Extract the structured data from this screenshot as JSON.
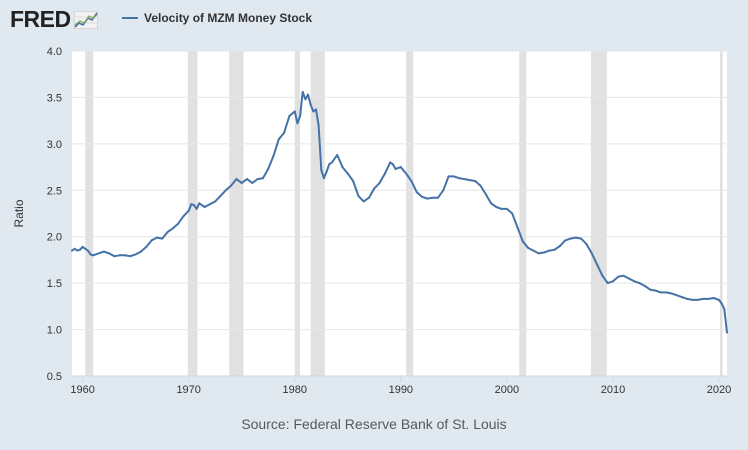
{
  "header": {
    "logo_text": "FRED",
    "logo_icon": "chart-line-icon"
  },
  "source": "Source: Federal Reserve Bank of St. Louis",
  "colors": {
    "background": "#e1e9f0",
    "plot_bg": "#ffffff",
    "series": "#4572a7",
    "recession": "#e1e1e1",
    "grid": "#e6e6e6",
    "text": "#333333"
  },
  "chart_data": {
    "type": "line",
    "title": "",
    "xlabel": "",
    "ylabel": "Ratio",
    "xlim": [
      1959.0,
      2020.75
    ],
    "ylim": [
      0.5,
      4.0
    ],
    "x_ticks": [
      1960,
      1970,
      1980,
      1990,
      2000,
      2010,
      2020
    ],
    "y_ticks": [
      0.5,
      1.0,
      1.5,
      2.0,
      2.5,
      3.0,
      3.5,
      4.0
    ],
    "y_tick_labels": [
      "0.5",
      "1.0",
      "1.5",
      "2.0",
      "2.5",
      "3.0",
      "3.5",
      "4.0"
    ],
    "grid": true,
    "legend_position": "top-left",
    "recessions": [
      [
        1960.25,
        1961.0
      ],
      [
        1969.92,
        1970.83
      ],
      [
        1973.83,
        1975.17
      ],
      [
        1980.0,
        1980.5
      ],
      [
        1981.5,
        1982.83
      ],
      [
        1990.5,
        1991.17
      ],
      [
        2001.17,
        2001.83
      ],
      [
        2007.92,
        2009.42
      ],
      [
        2020.08,
        2020.33
      ]
    ],
    "series": [
      {
        "name": "Velocity of MZM Money Stock",
        "x": [
          1959.0,
          1959.25,
          1959.5,
          1959.75,
          1960.0,
          1960.25,
          1960.5,
          1960.75,
          1961.0,
          1961.5,
          1962.0,
          1962.5,
          1963.0,
          1963.5,
          1964.0,
          1964.5,
          1965.0,
          1965.5,
          1966.0,
          1966.5,
          1967.0,
          1967.5,
          1968.0,
          1968.5,
          1969.0,
          1969.5,
          1970.0,
          1970.25,
          1970.5,
          1970.75,
          1971.0,
          1971.5,
          1972.0,
          1972.5,
          1973.0,
          1973.5,
          1974.0,
          1974.5,
          1975.0,
          1975.5,
          1976.0,
          1976.5,
          1977.0,
          1977.5,
          1978.0,
          1978.5,
          1979.0,
          1979.5,
          1980.0,
          1980.25,
          1980.5,
          1980.75,
          1981.0,
          1981.25,
          1981.5,
          1981.75,
          1982.0,
          1982.25,
          1982.5,
          1982.75,
          1983.0,
          1983.25,
          1983.5,
          1984.0,
          1984.5,
          1985.0,
          1985.5,
          1986.0,
          1986.5,
          1987.0,
          1987.5,
          1988.0,
          1988.5,
          1989.0,
          1989.25,
          1989.5,
          1990.0,
          1990.5,
          1991.0,
          1991.5,
          1992.0,
          1992.5,
          1993.0,
          1993.5,
          1994.0,
          1994.5,
          1995.0,
          1995.5,
          1996.0,
          1996.5,
          1997.0,
          1997.5,
          1998.0,
          1998.5,
          1999.0,
          1999.5,
          2000.0,
          2000.5,
          2001.0,
          2001.5,
          2002.0,
          2002.5,
          2003.0,
          2003.5,
          2004.0,
          2004.5,
          2005.0,
          2005.5,
          2006.0,
          2006.5,
          2007.0,
          2007.5,
          2008.0,
          2008.5,
          2009.0,
          2009.5,
          2010.0,
          2010.5,
          2011.0,
          2011.5,
          2012.0,
          2012.5,
          2013.0,
          2013.5,
          2014.0,
          2014.5,
          2015.0,
          2015.5,
          2016.0,
          2016.5,
          2017.0,
          2017.5,
          2018.0,
          2018.5,
          2019.0,
          2019.5,
          2020.0,
          2020.25,
          2020.5,
          2020.75
        ],
        "values": [
          1.85,
          1.87,
          1.85,
          1.86,
          1.89,
          1.87,
          1.85,
          1.81,
          1.8,
          1.82,
          1.84,
          1.82,
          1.79,
          1.8,
          1.8,
          1.79,
          1.81,
          1.84,
          1.89,
          1.96,
          1.99,
          1.98,
          2.05,
          2.09,
          2.14,
          2.22,
          2.28,
          2.35,
          2.34,
          2.3,
          2.36,
          2.32,
          2.35,
          2.38,
          2.44,
          2.5,
          2.55,
          2.62,
          2.58,
          2.62,
          2.58,
          2.62,
          2.63,
          2.73,
          2.87,
          3.05,
          3.12,
          3.3,
          3.35,
          3.22,
          3.3,
          3.56,
          3.48,
          3.53,
          3.42,
          3.35,
          3.37,
          3.2,
          2.72,
          2.63,
          2.7,
          2.78,
          2.8,
          2.88,
          2.75,
          2.68,
          2.6,
          2.44,
          2.38,
          2.42,
          2.52,
          2.58,
          2.68,
          2.8,
          2.78,
          2.73,
          2.75,
          2.68,
          2.6,
          2.48,
          2.43,
          2.41,
          2.42,
          2.42,
          2.5,
          2.65,
          2.65,
          2.63,
          2.62,
          2.61,
          2.6,
          2.55,
          2.46,
          2.36,
          2.32,
          2.3,
          2.3,
          2.25,
          2.1,
          1.95,
          1.88,
          1.85,
          1.82,
          1.83,
          1.85,
          1.86,
          1.9,
          1.96,
          1.98,
          1.99,
          1.98,
          1.92,
          1.82,
          1.7,
          1.58,
          1.5,
          1.52,
          1.57,
          1.58,
          1.55,
          1.52,
          1.5,
          1.47,
          1.43,
          1.42,
          1.4,
          1.4,
          1.39,
          1.37,
          1.35,
          1.33,
          1.32,
          1.32,
          1.33,
          1.33,
          1.34,
          1.32,
          1.28,
          1.22,
          0.97
        ]
      }
    ]
  }
}
